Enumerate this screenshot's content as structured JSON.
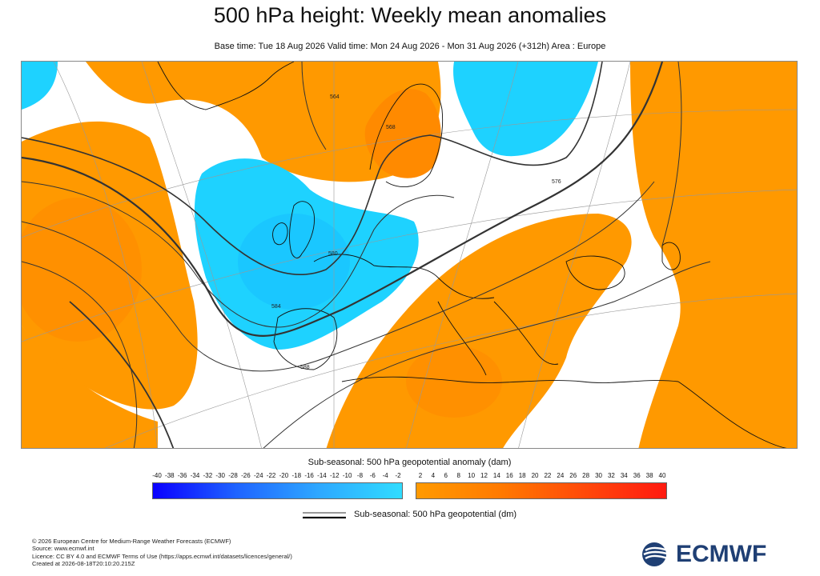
{
  "title": "500 hPa height: Weekly mean anomalies",
  "subtitle": "Base time: Tue 18 Aug 2026 Valid time: Mon 24 Aug 2026 - Mon 31 Aug 2026 (+312h) Area : Europe",
  "contour_labels": [
    "564",
    "568",
    "576",
    "580",
    "584",
    "588"
  ],
  "legend": {
    "title": "Sub-seasonal: 500 hPa geopotential anomaly (dam)",
    "negative_ticks": [
      "-40",
      "-38",
      "-36",
      "-34",
      "-32",
      "-30",
      "-28",
      "-26",
      "-24",
      "-22",
      "-20",
      "-18",
      "-16",
      "-14",
      "-12",
      "-10",
      "-8",
      "-6",
      "-4",
      "-2"
    ],
    "positive_ticks": [
      "2",
      "4",
      "6",
      "8",
      "10",
      "12",
      "14",
      "16",
      "18",
      "20",
      "22",
      "24",
      "26",
      "28",
      "30",
      "32",
      "34",
      "36",
      "38",
      "40"
    ],
    "negative_colors": [
      "#0a00ff",
      "#30dcff"
    ],
    "positive_colors": [
      "#ff9a00",
      "#ff1a10"
    ],
    "contour_label": "Sub-seasonal: 500 hPa geopotential (dm)"
  },
  "colors": {
    "positive_anomaly": "#ff9900",
    "strong_positive_anomaly": "#ff8a00",
    "negative_anomaly": "#1ed2ff",
    "strong_negative_anomaly": "#18bfff",
    "contour": "#333333",
    "coastline": "#111111"
  },
  "footer": {
    "copyright": "© 2026 European Centre for Medium-Range Weather Forecasts (ECMWF)",
    "source": "Source: www.ecmwf.int",
    "licence": "Licence: CC BY 4.0 and ECMWF Terms of Use (https://apps.ecmwf.int/datasets/licences/general/)",
    "created": "Created at 2026-08-18T20:10:20.215Z"
  },
  "logo_text": "ECMWF"
}
